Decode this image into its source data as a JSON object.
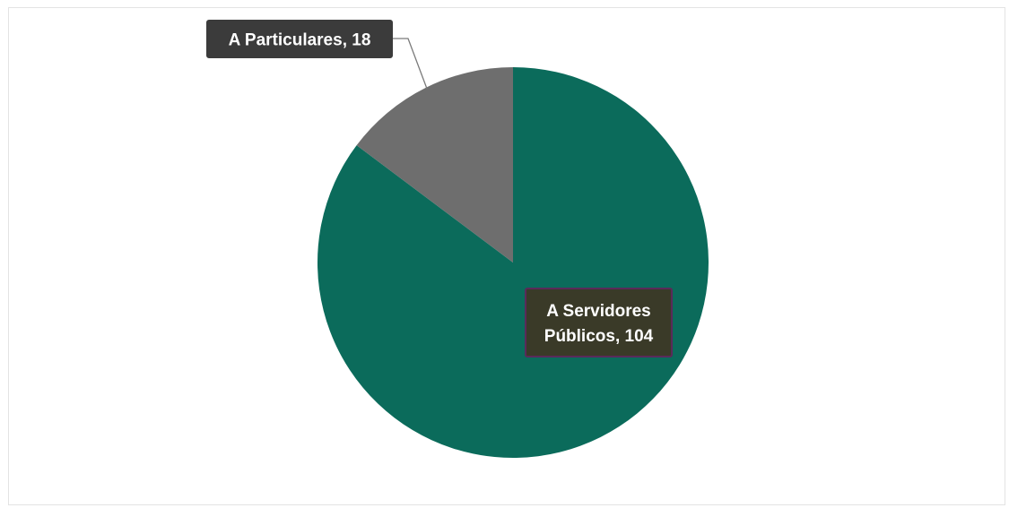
{
  "chart_data": {
    "type": "pie",
    "title": "",
    "slices": [
      {
        "label": "A Servidores Públicos",
        "value": 104,
        "color": "#0b6b5b",
        "data_label_lines": [
          "A Servidores",
          "Públicos, 104"
        ],
        "label_bg": "#3a3a28",
        "label_border": "#5a2a5a"
      },
      {
        "label": "A Particulares",
        "value": 18,
        "color": "#6e6e6e",
        "data_label_lines": [
          "A Particulares, 18"
        ],
        "label_bg": "#3b3b3b",
        "label_border": "#3b3b3b"
      }
    ],
    "start_angle_deg": 0,
    "direction": "clockwise",
    "legend": "none"
  }
}
